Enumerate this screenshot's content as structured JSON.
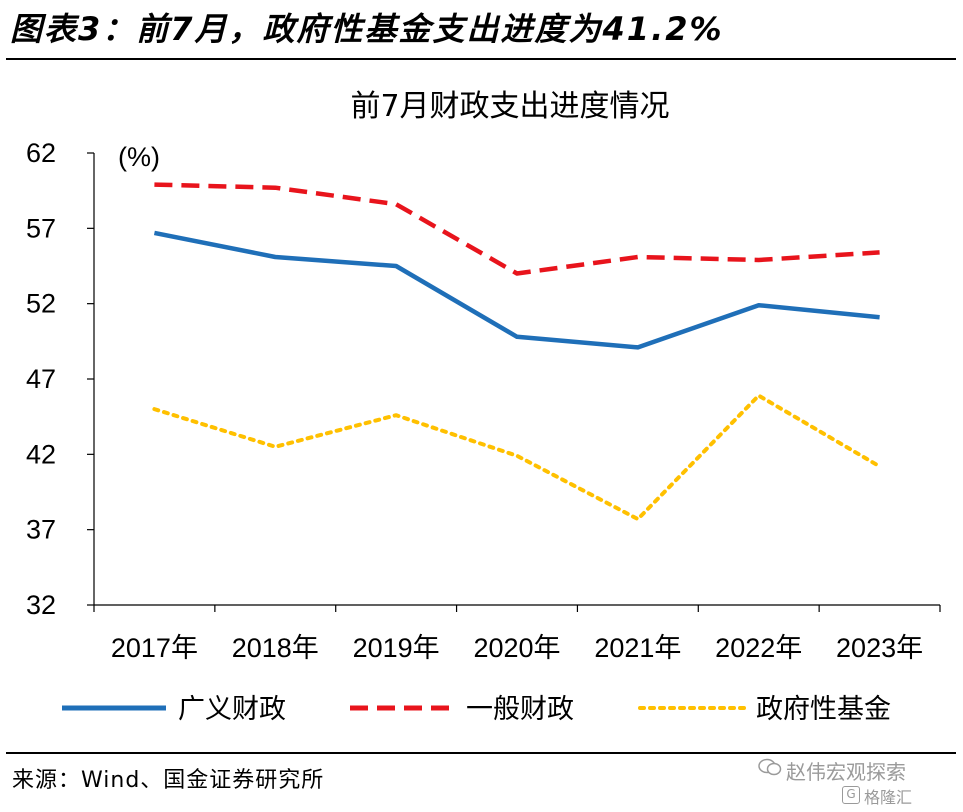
{
  "figure": {
    "heading": "图表3：前7月，政府性基金支出进度为41.2%",
    "source": "来源：Wind、国金证券研究所"
  },
  "watermark": {
    "line1": "赵伟宏观探索",
    "line2": "格隆汇"
  },
  "chart_data": {
    "type": "line",
    "title": "前7月财政支出进度情况",
    "unit_label": "(%)",
    "categories": [
      "2017年",
      "2018年",
      "2019年",
      "2020年",
      "2021年",
      "2022年",
      "2023年"
    ],
    "y_ticks": [
      "32",
      "37",
      "42",
      "47",
      "52",
      "57",
      "62"
    ],
    "ylim": [
      32,
      62
    ],
    "grid": false,
    "legend_position": "bottom",
    "series": [
      {
        "name": "广义财政",
        "values": [
          56.7,
          55.1,
          54.5,
          49.8,
          49.1,
          51.9,
          51.1
        ],
        "color": "#1f6fb8",
        "style": "solid"
      },
      {
        "name": "一般财政",
        "values": [
          59.9,
          59.7,
          58.6,
          54.0,
          55.1,
          54.9,
          55.4
        ],
        "color": "#e8141c",
        "style": "dashed"
      },
      {
        "name": "政府性基金",
        "values": [
          45.0,
          42.5,
          44.6,
          41.9,
          37.7,
          45.9,
          41.2
        ],
        "color": "#ffc000",
        "style": "dotted"
      }
    ]
  }
}
